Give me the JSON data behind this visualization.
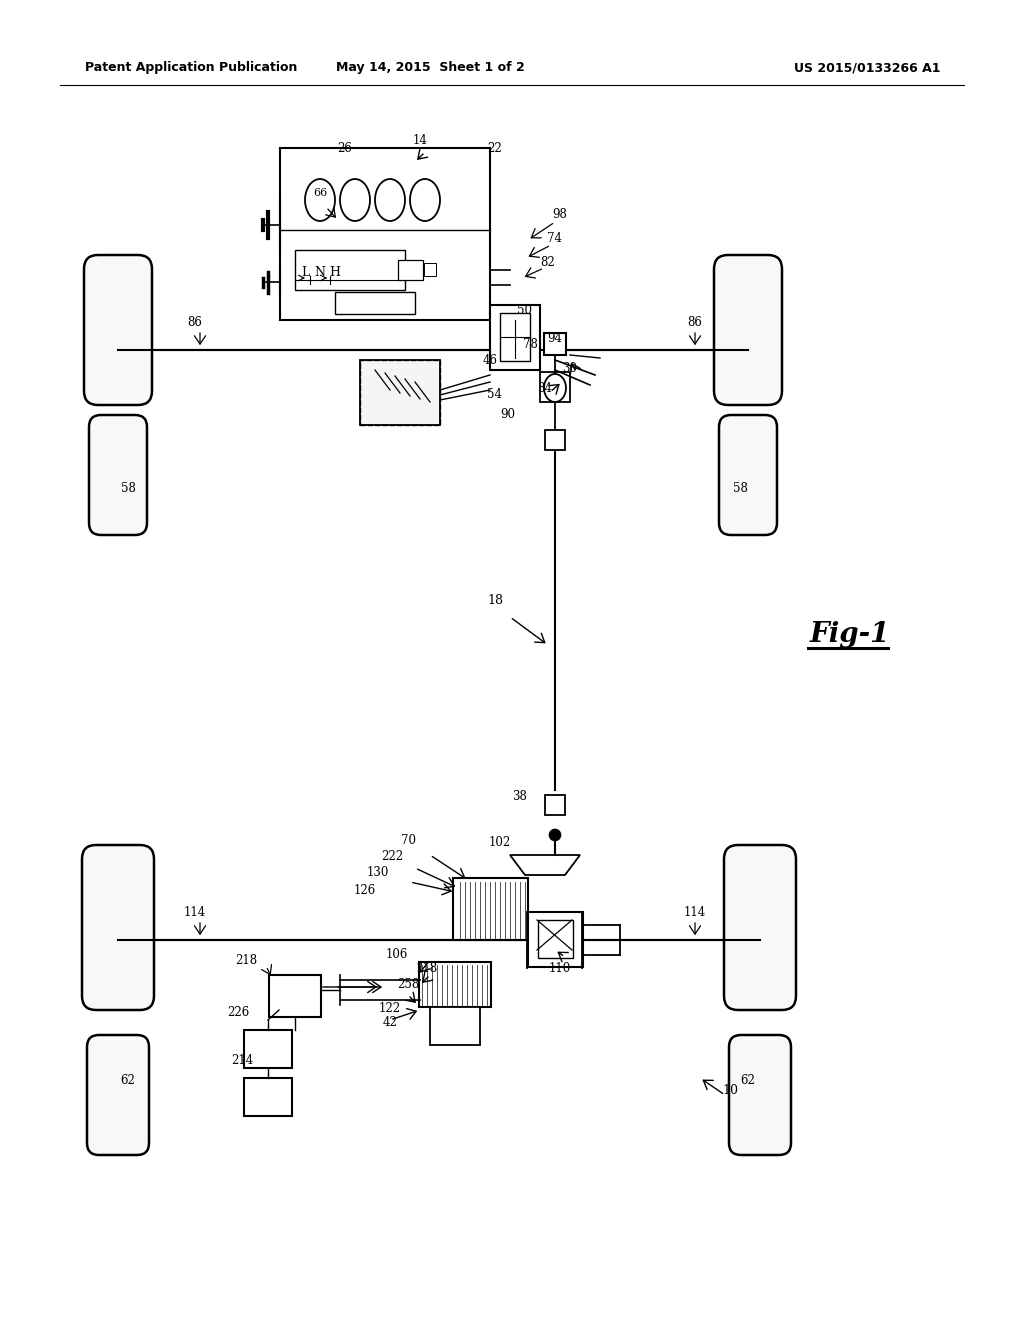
{
  "bg_color": "#ffffff",
  "title_left": "Patent Application Publication",
  "title_mid": "May 14, 2015  Sheet 1 of 2",
  "title_right": "US 2015/0133266 A1",
  "fig_label": "Fig-1"
}
